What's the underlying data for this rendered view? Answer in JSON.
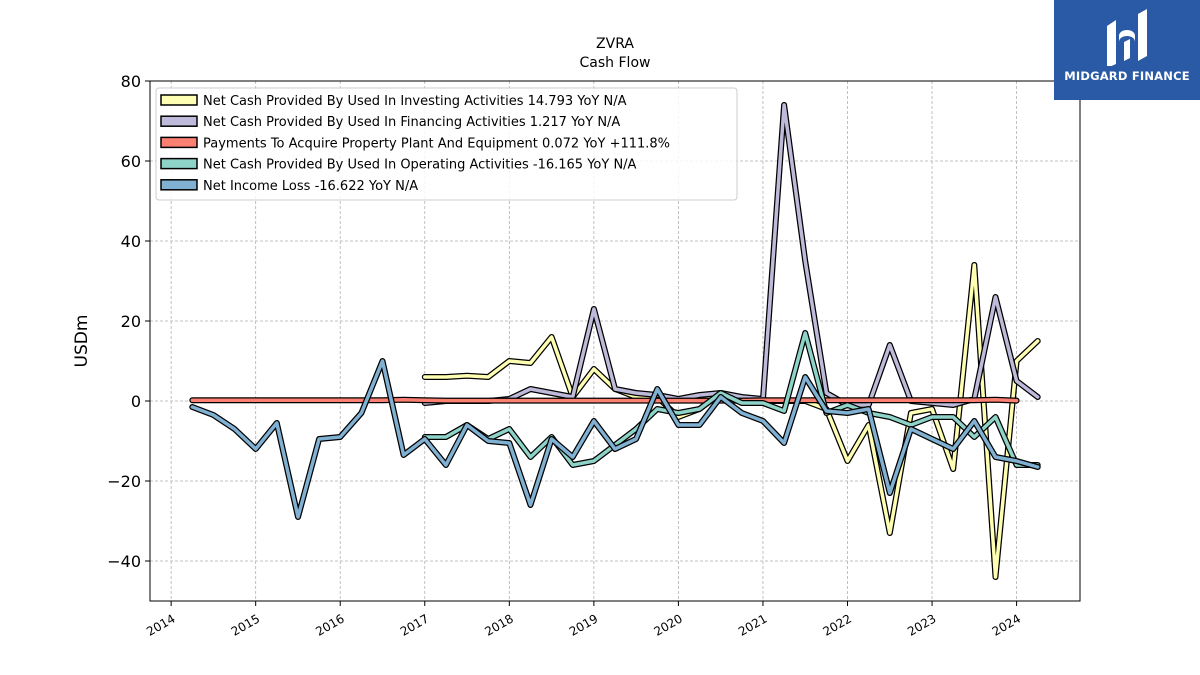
{
  "chart_data": {
    "type": "line",
    "title": "ZVRA",
    "subtitle": "Cash Flow",
    "ylabel": "USDm",
    "xlabel": "",
    "ylim": [
      -50,
      80
    ],
    "xlim": [
      2013.75,
      2024.75
    ],
    "y_ticks": [
      {
        "value": -40,
        "label": "−40"
      },
      {
        "value": -20,
        "label": "−20"
      },
      {
        "value": 0,
        "label": "0"
      },
      {
        "value": 20,
        "label": "20"
      },
      {
        "value": 40,
        "label": "40"
      },
      {
        "value": 60,
        "label": "60"
      },
      {
        "value": 80,
        "label": "80"
      }
    ],
    "x_ticks": [
      {
        "value": 2014,
        "label": "2014"
      },
      {
        "value": 2015,
        "label": "2015"
      },
      {
        "value": 2016,
        "label": "2016"
      },
      {
        "value": 2017,
        "label": "2017"
      },
      {
        "value": 2018,
        "label": "2018"
      },
      {
        "value": 2019,
        "label": "2019"
      },
      {
        "value": 2020,
        "label": "2020"
      },
      {
        "value": 2021,
        "label": "2021"
      },
      {
        "value": 2022,
        "label": "2022"
      },
      {
        "value": 2023,
        "label": "2023"
      },
      {
        "value": 2024,
        "label": "2024"
      }
    ],
    "grid": true,
    "legend_position": "top-left",
    "series": [
      {
        "name": "Net Cash Provided By Used In Investing Activities  14.793 YoY N/A",
        "color": "#ffffb3",
        "x": [
          2017.0,
          2017.25,
          2017.5,
          2017.75,
          2018.0,
          2018.25,
          2018.5,
          2018.75,
          2019.0,
          2019.25,
          2019.5,
          2019.75,
          2020.0,
          2020.25,
          2020.5,
          2020.75,
          2021.0,
          2021.25,
          2021.5,
          2021.75,
          2022.0,
          2022.25,
          2022.5,
          2022.75,
          2023.0,
          2023.25,
          2023.5,
          2023.75,
          2024.0,
          2024.25
        ],
        "values": [
          6,
          6,
          6.3,
          6,
          10,
          9.5,
          16,
          1,
          8,
          3,
          1,
          1,
          -4,
          -2,
          2,
          0,
          0,
          0,
          0,
          -2,
          -15,
          -6,
          -33,
          -3,
          -2,
          -17,
          34,
          -44,
          10,
          15
        ]
      },
      {
        "name": "Net Cash Provided By Used In Financing Activities  1.217 YoY N/A",
        "color": "#bebada",
        "x": [
          2017.0,
          2017.25,
          2017.5,
          2017.75,
          2018.0,
          2018.25,
          2018.5,
          2018.75,
          2019.0,
          2019.25,
          2019.5,
          2019.75,
          2020.0,
          2020.25,
          2020.5,
          2020.75,
          2021.0,
          2021.25,
          2021.5,
          2021.75,
          2022.0,
          2022.25,
          2022.5,
          2022.75,
          2023.0,
          2023.25,
          2023.5,
          2023.75,
          2024.0,
          2024.25
        ],
        "values": [
          -0.5,
          0,
          0,
          0,
          0.5,
          3,
          2,
          1,
          23,
          3,
          2,
          1.5,
          0.5,
          1.5,
          2,
          1,
          0.5,
          74,
          35,
          2,
          -1,
          -1,
          14,
          0,
          -0.5,
          -1,
          0.5,
          26,
          5,
          1
        ]
      },
      {
        "name": "Payments To Acquire Property Plant And Equipment  0.072 YoY +111.8%",
        "color": "#fb8072",
        "x": [
          2014.25,
          2014.5,
          2014.75,
          2015.0,
          2015.25,
          2015.5,
          2015.75,
          2016.0,
          2016.25,
          2016.5,
          2016.75,
          2017.0,
          2017.25,
          2017.5,
          2017.75,
          2018.0,
          2018.25,
          2018.5,
          2018.75,
          2019.0,
          2019.25,
          2019.5,
          2019.75,
          2020.0,
          2020.25,
          2020.5,
          2020.75,
          2021.0,
          2021.25,
          2021.5,
          2021.75,
          2022.0,
          2022.25,
          2022.5,
          2022.75,
          2023.0,
          2023.25,
          2023.5,
          2023.75,
          2024.0
        ],
        "values": [
          0.2,
          0.2,
          0.2,
          0.2,
          0.2,
          0.2,
          0.2,
          0.2,
          0.2,
          0.2,
          0.3,
          0.2,
          0.1,
          0.1,
          0.1,
          0.1,
          0.1,
          0.1,
          0.1,
          0.1,
          0.1,
          0.1,
          0.1,
          0.1,
          0.1,
          0.1,
          0.1,
          0.2,
          0.2,
          0.2,
          0.2,
          0.2,
          0.2,
          0.2,
          0.2,
          0.2,
          0.2,
          0.2,
          0.3,
          0.1
        ]
      },
      {
        "name": "Net Cash Provided By Used In Operating Activities  -16.165 YoY N/A",
        "color": "#8dd3c7",
        "x": [
          2017.0,
          2017.25,
          2017.5,
          2017.75,
          2018.0,
          2018.25,
          2018.5,
          2018.75,
          2019.0,
          2019.25,
          2019.5,
          2019.75,
          2020.0,
          2020.25,
          2020.5,
          2020.75,
          2021.0,
          2021.25,
          2021.5,
          2021.75,
          2022.0,
          2022.25,
          2022.5,
          2022.75,
          2023.0,
          2023.25,
          2023.5,
          2023.75,
          2024.0,
          2024.25
        ],
        "values": [
          -9,
          -9,
          -6,
          -9.5,
          -7,
          -14,
          -9,
          -16,
          -15,
          -11,
          -7,
          -2,
          -3,
          -2,
          2,
          -0.5,
          -0.5,
          -2.5,
          17,
          -3,
          -1,
          -3,
          -4,
          -6,
          -4,
          -4,
          -9,
          -4,
          -16,
          -16
        ]
      },
      {
        "name": "Net Income Loss  -16.622 YoY N/A",
        "color": "#80b1d3",
        "x": [
          2014.25,
          2014.5,
          2014.75,
          2015.0,
          2015.25,
          2015.5,
          2015.75,
          2016.0,
          2016.25,
          2016.5,
          2016.75,
          2017.0,
          2017.25,
          2017.5,
          2017.75,
          2018.0,
          2018.25,
          2018.5,
          2018.75,
          2019.0,
          2019.25,
          2019.5,
          2019.75,
          2020.0,
          2020.25,
          2020.5,
          2020.75,
          2021.0,
          2021.25,
          2021.5,
          2021.75,
          2022.0,
          2022.25,
          2022.5,
          2022.75,
          2023.0,
          2023.25,
          2023.5,
          2023.75,
          2024.0,
          2024.25
        ],
        "values": [
          -1.5,
          -3.5,
          -7,
          -12,
          -5.5,
          -29,
          -9.5,
          -9,
          -3,
          10,
          -13.5,
          -9.5,
          -16,
          -6,
          -10,
          -10.5,
          -26,
          -9.5,
          -14,
          -5,
          -12,
          -9.5,
          3,
          -6,
          -6,
          1,
          -3,
          -5,
          -10.5,
          6,
          -2.5,
          -3,
          -2,
          -23,
          -7,
          -9.5,
          -12,
          -5,
          -14,
          -15,
          -16.5
        ]
      }
    ]
  },
  "logo": {
    "text": "MIDGARD FINANCE",
    "background": "#2a5aa6"
  }
}
